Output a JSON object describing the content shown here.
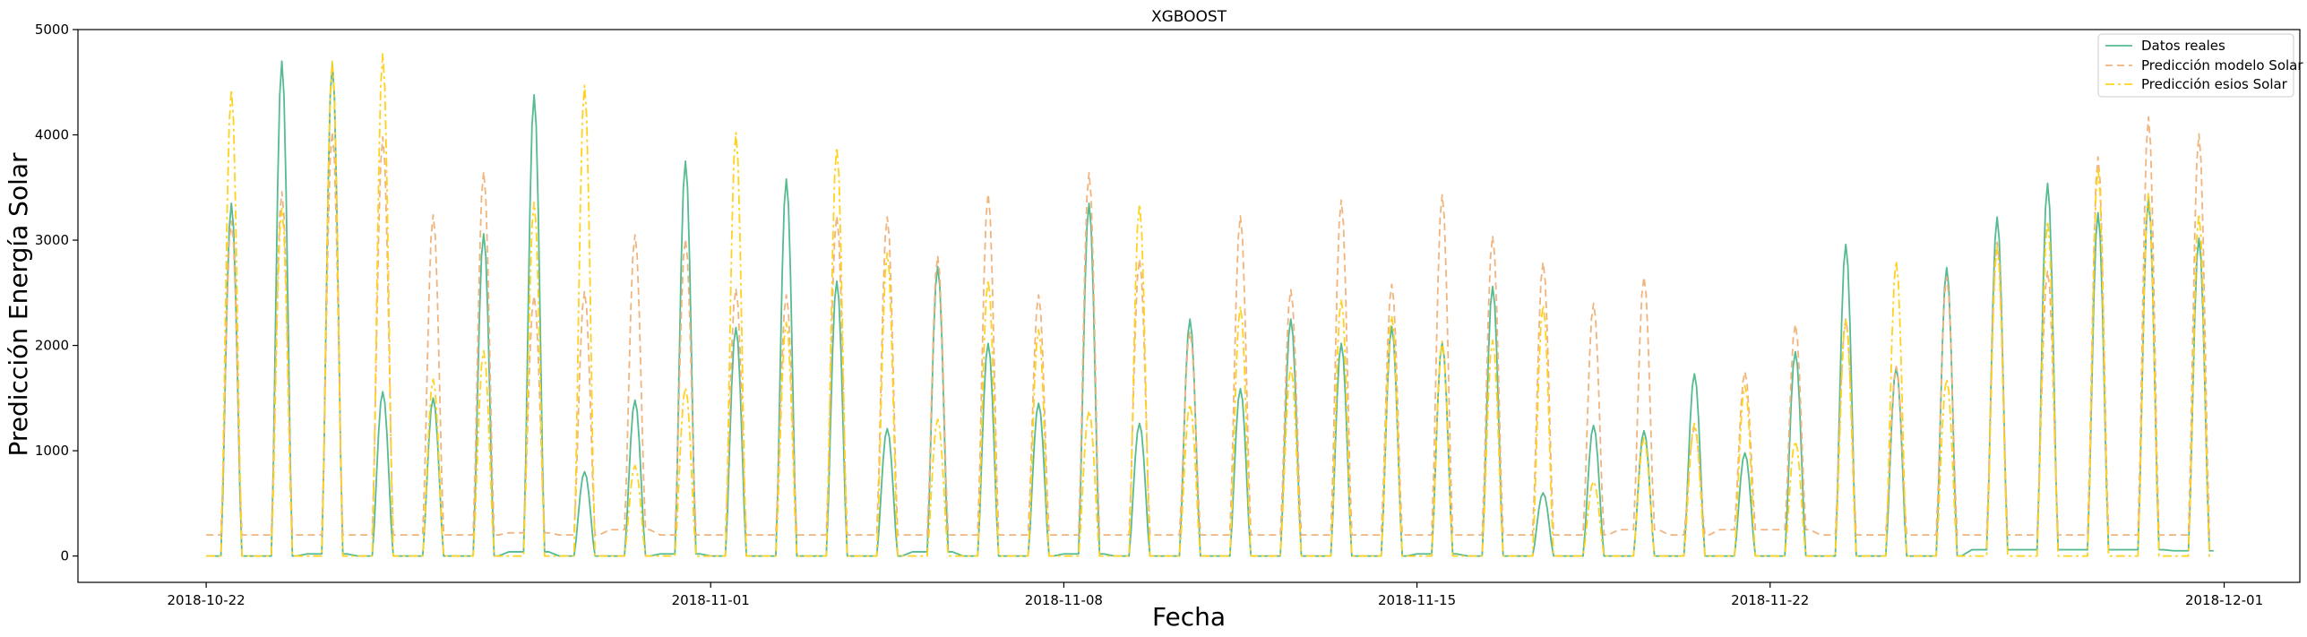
{
  "chart_data": {
    "type": "line",
    "title": "XGBOOST",
    "xlabel": "Fecha",
    "ylabel": "Predicción Energía Solar",
    "xlim": [
      "2018-10-19T11:00",
      "2018-12-02T12:00"
    ],
    "ylim": [
      -250,
      5000
    ],
    "x_ticks": [
      "2018-10-22",
      "2018-11-01",
      "2018-11-08",
      "2018-11-15",
      "2018-11-22",
      "2018-12-01"
    ],
    "y_ticks": [
      0,
      1000,
      2000,
      3000,
      4000,
      5000
    ],
    "grid": false,
    "legend_position": "top-right",
    "start": "2018-10-22",
    "series": [
      {
        "name": "Datos reales",
        "color": "#55bb91",
        "style": "solid",
        "daily_peaks": [
          3350,
          4700,
          4680,
          1560,
          1500,
          3060,
          4380,
          800,
          1480,
          3750,
          2170,
          3580,
          2610,
          1210,
          2750,
          2020,
          1450,
          3350,
          1260,
          2250,
          1590,
          2250,
          2020,
          2180,
          2020,
          2560,
          600,
          1240,
          1190,
          1730,
          980,
          1940,
          2960,
          1790,
          2740,
          3220,
          3540,
          3260,
          3390,
          3020
        ],
        "night_level": [
          0,
          0,
          20,
          0,
          0,
          0,
          40,
          0,
          0,
          20,
          0,
          0,
          0,
          0,
          40,
          0,
          0,
          20,
          0,
          0,
          0,
          0,
          0,
          0,
          20,
          0,
          0,
          0,
          0,
          0,
          0,
          0,
          0,
          0,
          0,
          60,
          60,
          60,
          60,
          50
        ]
      },
      {
        "name": "Predicción modelo Solar",
        "color": "#f0b47e",
        "style": "dashed",
        "daily_peaks": [
          3180,
          3460,
          4030,
          3980,
          3240,
          3650,
          2470,
          2510,
          3050,
          3010,
          2540,
          2480,
          3230,
          3220,
          2850,
          3440,
          2480,
          3640,
          2820,
          2130,
          3230,
          2530,
          3380,
          2580,
          3430,
          3040,
          2790,
          2400,
          2650,
          1220,
          1750,
          2200,
          2250,
          1800,
          2650,
          2980,
          2710,
          3790,
          4170,
          4010
        ],
        "night_level": [
          200,
          200,
          200,
          200,
          200,
          200,
          220,
          200,
          250,
          200,
          200,
          200,
          200,
          200,
          200,
          200,
          200,
          200,
          200,
          200,
          200,
          200,
          200,
          200,
          200,
          200,
          200,
          200,
          250,
          200,
          250,
          250,
          200,
          200,
          200,
          200,
          200,
          200,
          200,
          200
        ]
      },
      {
        "name": "Predicción esios Solar",
        "color": "#ffd21f",
        "style": "dashdot",
        "daily_peaks": [
          4430,
          3300,
          4710,
          4770,
          1680,
          1950,
          3360,
          4470,
          860,
          1600,
          4020,
          2220,
          3880,
          2880,
          1300,
          2620,
          2150,
          1380,
          3340,
          1440,
          2370,
          1790,
          2440,
          2280,
          2040,
          2050,
          2380,
          710,
          1120,
          1260,
          1620,
          1090,
          2240,
          2800,
          1680,
          2940,
          3180,
          3690,
          3450,
          3250
        ],
        "night_level": [
          0,
          0,
          0,
          0,
          0,
          0,
          0,
          0,
          0,
          0,
          0,
          0,
          0,
          0,
          0,
          0,
          0,
          0,
          0,
          0,
          0,
          0,
          0,
          0,
          0,
          0,
          0,
          0,
          0,
          0,
          0,
          0,
          0,
          0,
          0,
          0,
          0,
          0,
          0,
          0
        ]
      }
    ]
  }
}
